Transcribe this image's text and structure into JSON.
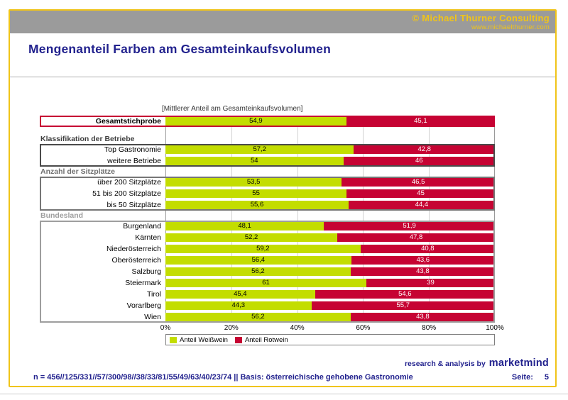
{
  "topbar": {
    "copyright": "© Michael Thurner Consulting",
    "website": "www.michaelthurner.com"
  },
  "title": "Mengenanteil Farben am Gesamteinkaufsvolumen",
  "chart_data": {
    "type": "bar",
    "orientation": "horizontal",
    "stacked": true,
    "subtitle": "[Mittlerer Anteil am Gesamteinkaufsvolumen]",
    "unit": "percent",
    "xlim": [
      0,
      100
    ],
    "x_ticks": [
      "0%",
      "20%",
      "40%",
      "60%",
      "80%",
      "100%"
    ],
    "grid": true,
    "legend_position": "bottom",
    "legend": [
      {
        "label": "Anteil Weißwein",
        "color": "#c3dd00"
      },
      {
        "label": "Anteil Rotwein",
        "color": "#c60333"
      }
    ],
    "group_frames": {
      "gesamt": "#c60333",
      "klassifikation": "#4a4a4a",
      "sitzplaetze": "#767676",
      "bundesland": "#9e9e9e"
    },
    "rows": [
      {
        "type": "bar",
        "group": "gesamt",
        "label": "Gesamtstichprobe",
        "bold": true,
        "weiss": 54.9,
        "rot": 45.1,
        "weiss_text": "54,9",
        "rot_text": "45,1"
      },
      {
        "type": "spacer"
      },
      {
        "type": "section",
        "level": 1,
        "label": "Klassifikation der Betriebe"
      },
      {
        "type": "bar",
        "group": "klassifikation",
        "label": "Top Gastronomie",
        "weiss": 57.2,
        "rot": 42.8,
        "weiss_text": "57,2",
        "rot_text": "42,8"
      },
      {
        "type": "bar",
        "group": "klassifikation",
        "label": "weitere Betriebe",
        "weiss": 54,
        "rot": 46,
        "weiss_text": "54",
        "rot_text": "46"
      },
      {
        "type": "section",
        "level": 2,
        "label": "Anzahl der Sitzplätze"
      },
      {
        "type": "bar",
        "group": "sitzplaetze",
        "label": "über 200 Sitzplätze",
        "weiss": 53.5,
        "rot": 46.5,
        "weiss_text": "53,5",
        "rot_text": "46,5"
      },
      {
        "type": "bar",
        "group": "sitzplaetze",
        "label": "51 bis 200 Sitzplätze",
        "weiss": 55,
        "rot": 45,
        "weiss_text": "55",
        "rot_text": "45"
      },
      {
        "type": "bar",
        "group": "sitzplaetze",
        "label": "bis 50 Sitzplätze",
        "weiss": 55.6,
        "rot": 44.4,
        "weiss_text": "55,6",
        "rot_text": "44,4"
      },
      {
        "type": "section",
        "level": 3,
        "label": "Bundesland"
      },
      {
        "type": "bar",
        "group": "bundesland",
        "label": "Burgenland",
        "weiss": 48.1,
        "rot": 51.9,
        "weiss_text": "48,1",
        "rot_text": "51,9"
      },
      {
        "type": "bar",
        "group": "bundesland",
        "label": "Kärnten",
        "weiss": 52.2,
        "rot": 47.8,
        "weiss_text": "52,2",
        "rot_text": "47,8"
      },
      {
        "type": "bar",
        "group": "bundesland",
        "label": "Niederösterreich",
        "weiss": 59.2,
        "rot": 40.8,
        "weiss_text": "59,2",
        "rot_text": "40,8"
      },
      {
        "type": "bar",
        "group": "bundesland",
        "label": "Oberösterreich",
        "weiss": 56.4,
        "rot": 43.6,
        "weiss_text": "56,4",
        "rot_text": "43,6"
      },
      {
        "type": "bar",
        "group": "bundesland",
        "label": "Salzburg",
        "weiss": 56.2,
        "rot": 43.8,
        "weiss_text": "56,2",
        "rot_text": "43,8"
      },
      {
        "type": "bar",
        "group": "bundesland",
        "label": "Steiermark",
        "weiss": 61,
        "rot": 39,
        "weiss_text": "61",
        "rot_text": "39"
      },
      {
        "type": "bar",
        "group": "bundesland",
        "label": "Tirol",
        "weiss": 45.4,
        "rot": 54.6,
        "weiss_text": "45,4",
        "rot_text": "54,6"
      },
      {
        "type": "bar",
        "group": "bundesland",
        "label": "Vorarlberg",
        "weiss": 44.3,
        "rot": 55.7,
        "weiss_text": "44,3",
        "rot_text": "55,7"
      },
      {
        "type": "bar",
        "group": "bundesland",
        "label": "Wien",
        "weiss": 56.2,
        "rot": 43.8,
        "weiss_text": "56,2",
        "rot_text": "43,8"
      }
    ]
  },
  "footer": {
    "branding_prefix": "research & analysis by",
    "branding_name": "marketmind",
    "note": "n = 456//125/331//57/300/98//38/33/81/55/49/63/40/23/74 || Basis: österreichische gehobene Gastronomie",
    "page_label": "Seite:",
    "page_number": "5"
  },
  "colors": {
    "accent_yellow": "#f0c419",
    "header_gray": "#9b9b9b",
    "navy": "#22228e",
    "weisswein_green": "#c3dd00",
    "rotwein_red": "#c60333"
  }
}
